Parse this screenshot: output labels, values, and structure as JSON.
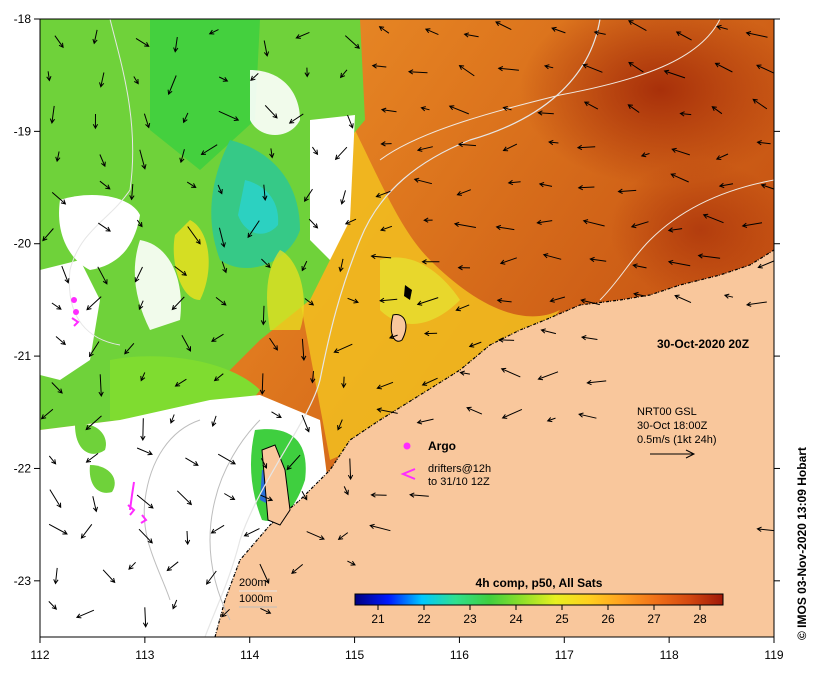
{
  "map": {
    "lon_range": [
      112,
      119
    ],
    "lat_range": [
      -23.5,
      -18
    ],
    "lon_ticks": [
      "112",
      "113",
      "114",
      "115",
      "116",
      "117",
      "118",
      "119"
    ],
    "lat_ticks": [
      "-18",
      "-19",
      "-20",
      "-21",
      "-22",
      "-23"
    ],
    "colors": {
      "land": "#f9c79c",
      "cloud": "#ffffff",
      "warm": "#e07a1f",
      "hot": "#b83a0c",
      "mid": "#f2c020",
      "cool_green": "#6fd23a",
      "bright_green": "#3fcf3f",
      "cyan": "#2bd1c8",
      "blue": "#2a6fd6",
      "contour": "#e6e6e6",
      "argo": "#ff2cff",
      "drifter": "#ff2cff"
    }
  },
  "annotations": {
    "timestamp": "30-Oct-2020 20Z",
    "current_source": "NRT00 GSL",
    "current_time": "30-Oct 18:00Z",
    "current_scale": "0.5m/s (1kt 24h)",
    "argo_label": "Argo",
    "drifters_label_1": "drifters@12h",
    "drifters_label_2": "to 31/10 12Z",
    "depth_200": "200m",
    "depth_1000": "1000m",
    "credit": "© IMOS 03-Nov-2020 13:09 Hobart"
  },
  "colorbar": {
    "title": "4h comp, p50, All Sats",
    "min": 20.5,
    "max": 28.5,
    "ticks": [
      "21",
      "22",
      "23",
      "24",
      "25",
      "26",
      "27",
      "28"
    ],
    "stops": [
      "#00007f",
      "#0019ff",
      "#00c8ff",
      "#30e08f",
      "#3fcf3f",
      "#8fe02a",
      "#e8f020",
      "#ffd020",
      "#ffa020",
      "#f07018",
      "#d44810",
      "#a01808"
    ]
  }
}
